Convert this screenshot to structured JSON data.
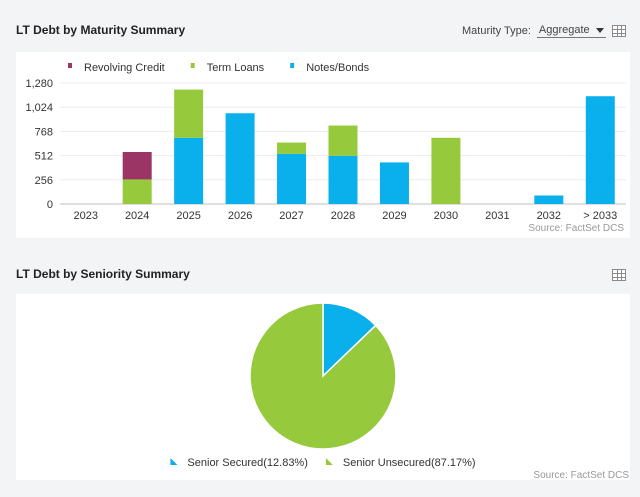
{
  "maturity": {
    "title": "LT Debt by Maturity Summary",
    "maturity_type_label": "Maturity Type:",
    "maturity_type_value": "Aggregate",
    "source": "Source: FactSet DCS"
  },
  "seniority": {
    "title": "LT Debt by Seniority Summary",
    "source": "Source: FactSet DCS"
  },
  "colors": {
    "revolving": "#9b3566",
    "term": "#97c93c",
    "notes": "#0ab0ec"
  },
  "chart_data": [
    {
      "type": "bar",
      "stacked": true,
      "title": "LT Debt by Maturity Summary",
      "categories": [
        "2023",
        "2024",
        "2025",
        "2026",
        "2027",
        "2028",
        "2029",
        "2030",
        "2031",
        "2032",
        "> 2033"
      ],
      "series": [
        {
          "name": "Notes/Bonds",
          "color": "#0ab0ec",
          "values": [
            0,
            0,
            700,
            960,
            530,
            510,
            440,
            0,
            0,
            90,
            1140
          ]
        },
        {
          "name": "Term Loans",
          "color": "#97c93c",
          "values": [
            0,
            260,
            510,
            0,
            120,
            320,
            0,
            700,
            0,
            0,
            0
          ]
        },
        {
          "name": "Revolving Credit",
          "color": "#9b3566",
          "values": [
            0,
            290,
            0,
            0,
            0,
            0,
            0,
            0,
            0,
            0,
            0
          ]
        }
      ],
      "legend_order": [
        "Revolving Credit",
        "Term Loans",
        "Notes/Bonds"
      ],
      "yticks": [
        0,
        256,
        512,
        768,
        1024,
        1280
      ],
      "ytick_labels": [
        "0",
        "256",
        "512",
        "768",
        "1,024",
        "1,280"
      ],
      "ylim": [
        0,
        1280
      ],
      "xlabel": "",
      "ylabel": "",
      "legend_position": "top-left",
      "grid": true
    },
    {
      "type": "pie",
      "title": "LT Debt by Seniority Summary",
      "slices": [
        {
          "name": "Senior Secured",
          "label": "Senior Secured(12.83%)",
          "value": 12.83,
          "color": "#0ab0ec"
        },
        {
          "name": "Senior Unsecured",
          "label": "Senior Unsecured(87.17%)",
          "value": 87.17,
          "color": "#97c93c"
        }
      ],
      "legend_position": "bottom"
    }
  ]
}
